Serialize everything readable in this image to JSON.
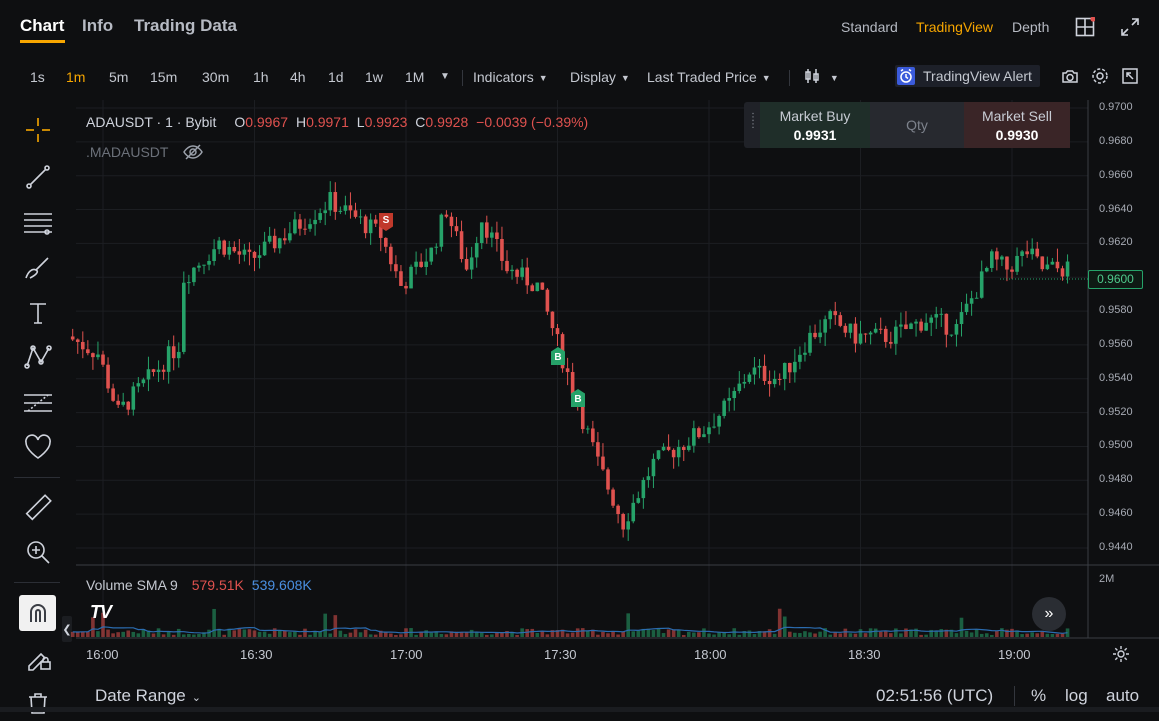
{
  "top_tabs": [
    {
      "label": "Chart"
    },
    {
      "label": "Info"
    },
    {
      "label": "Trading Data"
    }
  ],
  "view_options": [
    {
      "label": "Standard"
    },
    {
      "label": "TradingView"
    },
    {
      "label": "Depth"
    }
  ],
  "timeframes": [
    "1s",
    "1m",
    "5m",
    "15m",
    "30m",
    "1h",
    "4h",
    "1d",
    "1w",
    "1M"
  ],
  "active_timeframe": "1m",
  "toolbar": {
    "indicators": "Indicators",
    "display": "Display",
    "price_type": "Last Traded Price",
    "alert": "TradingView Alert"
  },
  "legend": {
    "symbol": "ADAUSDT · 1 · Bybit",
    "o_label": "O",
    "o": "0.9967",
    "h_label": "H",
    "h": "0.9971",
    "l_label": "L",
    "l": "0.9923",
    "c_label": "C",
    "c": "0.9928",
    "change": "−0.0039 (−0.39%)",
    "mark": ".MADAUSDT"
  },
  "trade_panel": {
    "buy_label": "Market Buy",
    "buy_price": "0.9931",
    "qty_placeholder": "Qty",
    "sell_label": "Market Sell",
    "sell_price": "0.9930"
  },
  "volume": {
    "label": "Volume SMA 9",
    "v1": "579.51K",
    "v2": "539.608K",
    "axis": "2M"
  },
  "markers": {
    "sell": "S",
    "buy": "B"
  },
  "logo": "TV",
  "current_price": "0.9600",
  "bottom": {
    "date_range": "Date Range",
    "clock": "02:51:56 (UTC)",
    "percent": "%",
    "log": "log",
    "auto": "auto"
  },
  "colors": {
    "up": "#26a269",
    "down": "#e0524f",
    "accent": "#f7a600",
    "sma": "#2b6cb0"
  },
  "chart_data": {
    "type": "candlestick",
    "symbol": "ADAUSDT",
    "interval": "1m",
    "y_ticks": [
      "0.9700",
      "0.9680",
      "0.9660",
      "0.9640",
      "0.9620",
      "0.9600",
      "0.9580",
      "0.9560",
      "0.9540",
      "0.9520",
      "0.9500",
      "0.9480",
      "0.9460",
      "0.9440"
    ],
    "x_ticks": [
      "16:00",
      "16:30",
      "17:00",
      "17:30",
      "18:00",
      "18:30",
      "19:00"
    ],
    "ylim": [
      0.9435,
      0.9705
    ],
    "price_path": [
      {
        "t": "15:54",
        "p": 0.9565
      },
      {
        "t": "16:00",
        "p": 0.9555
      },
      {
        "t": "16:04",
        "p": 0.952
      },
      {
        "t": "16:10",
        "p": 0.954
      },
      {
        "t": "16:16",
        "p": 0.956
      },
      {
        "t": "16:17",
        "p": 0.96
      },
      {
        "t": "16:24",
        "p": 0.962
      },
      {
        "t": "16:30",
        "p": 0.961
      },
      {
        "t": "16:37",
        "p": 0.9625
      },
      {
        "t": "16:46",
        "p": 0.9645
      },
      {
        "t": "16:56",
        "p": 0.9625
      },
      {
        "t": "17:00",
        "p": 0.9595
      },
      {
        "t": "17:06",
        "p": 0.9615
      },
      {
        "t": "17:09",
        "p": 0.964
      },
      {
        "t": "17:13",
        "p": 0.9605
      },
      {
        "t": "17:16",
        "p": 0.9635
      },
      {
        "t": "17:21",
        "p": 0.9605
      },
      {
        "t": "17:27",
        "p": 0.9595
      },
      {
        "t": "17:30",
        "p": 0.957
      },
      {
        "t": "17:35",
        "p": 0.9525
      },
      {
        "t": "17:39",
        "p": 0.949
      },
      {
        "t": "17:44",
        "p": 0.9455
      },
      {
        "t": "17:50",
        "p": 0.949
      },
      {
        "t": "18:00",
        "p": 0.951
      },
      {
        "t": "18:05",
        "p": 0.9525
      },
      {
        "t": "18:09",
        "p": 0.9545
      },
      {
        "t": "18:15",
        "p": 0.954
      },
      {
        "t": "18:21",
        "p": 0.9565
      },
      {
        "t": "18:25",
        "p": 0.9575
      },
      {
        "t": "18:30",
        "p": 0.9565
      },
      {
        "t": "18:37",
        "p": 0.9565
      },
      {
        "t": "18:44",
        "p": 0.9575
      },
      {
        "t": "18:50",
        "p": 0.957
      },
      {
        "t": "18:57",
        "p": 0.961
      },
      {
        "t": "19:00",
        "p": 0.9605
      },
      {
        "t": "19:04",
        "p": 0.9615
      },
      {
        "t": "19:07",
        "p": 0.9605
      },
      {
        "t": "19:11",
        "p": 0.9605
      }
    ]
  }
}
